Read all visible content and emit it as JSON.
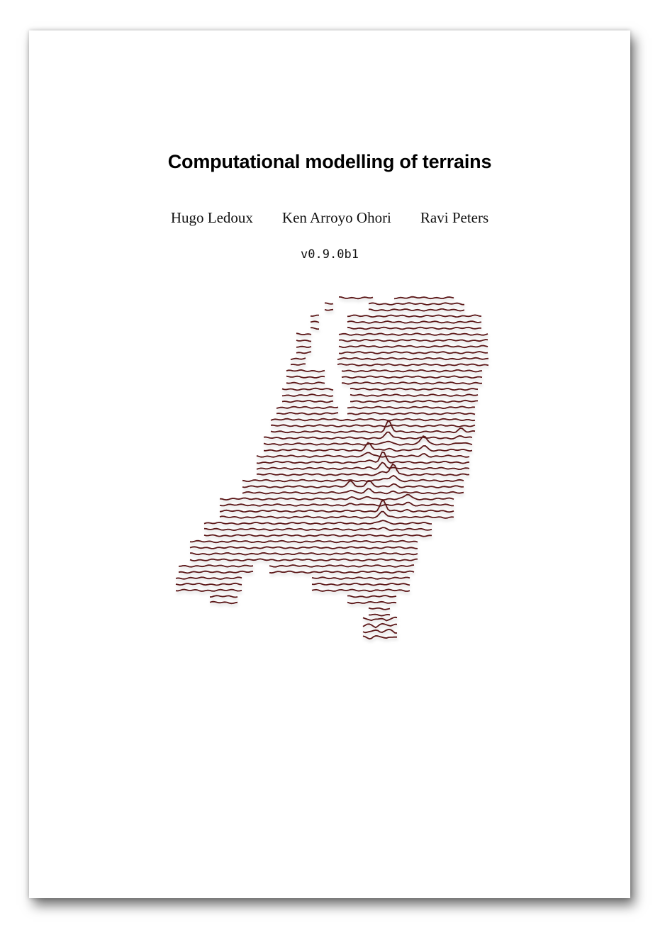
{
  "document": {
    "title": "Computational modelling of terrains",
    "authors": [
      "Hugo Ledoux",
      "Ken Arroyo Ohori",
      "Ravi Peters"
    ],
    "version": "v0.9.0b1"
  },
  "cover_image": {
    "subject": "Netherlands terrain ridge-line map",
    "line_color": "#5a1418"
  }
}
